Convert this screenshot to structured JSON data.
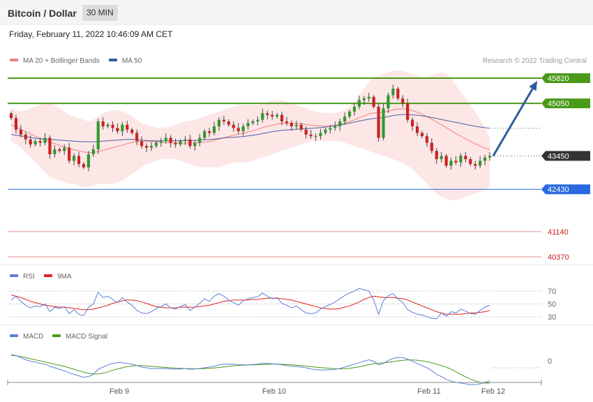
{
  "header": {
    "title": "Bitcoin / Dollar",
    "timeframe": "30 MIN",
    "datetime": "Friday, February 11, 2022 10:46:09 AM CET"
  },
  "legend": {
    "main": [
      {
        "label": "MA 20 + Bollinger Bands",
        "color": "#f08080"
      },
      {
        "label": "MA 50",
        "color": "#2e5c9a"
      }
    ],
    "rsi": [
      {
        "label": "RSI",
        "color": "#5b7fd6"
      },
      {
        "label": "9MA",
        "color": "#e02020"
      }
    ],
    "macd": [
      {
        "label": "MACD",
        "color": "#5b7fd6"
      },
      {
        "label": "MACD Signal",
        "color": "#4a9a1a"
      }
    ]
  },
  "credit": "Research © 2022 Trading Central",
  "colors": {
    "up": "#2e9a2e",
    "down": "#cc2222",
    "resistance": "#4a9a1a",
    "pivot": "#2a6ae0",
    "support": "#e89090",
    "last": "#333333",
    "bollinger_fill": "#fde3e3"
  },
  "chart_data": [
    {
      "type": "candlestick",
      "panel": "price",
      "title": "Bitcoin / Dollar",
      "ylim": [
        39900,
        46400
      ],
      "x_ticks": [
        "Feb 9",
        "Feb 10",
        "Feb 11",
        "Feb 12"
      ],
      "levels": [
        {
          "value": 45820,
          "label": "45820",
          "role": "resistance"
        },
        {
          "value": 45050,
          "label": "45050",
          "role": "resistance"
        },
        {
          "value": 43450,
          "label": "43450",
          "role": "last"
        },
        {
          "value": 42430,
          "label": "42430",
          "role": "pivot"
        },
        {
          "value": 41140,
          "label": "41140",
          "role": "support"
        },
        {
          "value": 40370,
          "label": "40370",
          "role": "support"
        }
      ],
      "forecast": {
        "from": 43450,
        "to": 45820
      },
      "closes": [
        44600,
        44250,
        44100,
        43950,
        43800,
        43900,
        43850,
        44000,
        43500,
        43650,
        43600,
        43700,
        43300,
        43450,
        43200,
        43100,
        43500,
        43650,
        44500,
        44350,
        44400,
        44300,
        44200,
        44400,
        44250,
        44150,
        43900,
        43750,
        43700,
        43750,
        43850,
        43900,
        44000,
        43850,
        43800,
        43900,
        43950,
        43750,
        43850,
        44000,
        44200,
        44150,
        44350,
        44550,
        44500,
        44400,
        44300,
        44200,
        44350,
        44450,
        44500,
        44550,
        44750,
        44700,
        44650,
        44700,
        44500,
        44450,
        44350,
        44400,
        44250,
        44100,
        44050,
        44050,
        44150,
        44250,
        44300,
        44350,
        44500,
        44650,
        44800,
        44950,
        45150,
        45200,
        45250,
        44950,
        44000,
        44900,
        45300,
        45500,
        45200,
        45050,
        44550,
        44350,
        44150,
        44050,
        43850,
        43600,
        43350,
        43450,
        43150,
        43300,
        43250,
        43450,
        43350,
        43200,
        43150,
        43300,
        43400,
        43450
      ],
      "ma50": [
        44100,
        44080,
        44060,
        44040,
        44010,
        43990,
        43970,
        43960,
        43950,
        43940,
        43930,
        43920,
        43910,
        43900,
        43890,
        43880,
        43880,
        43880,
        43890,
        43900,
        43910,
        43920,
        43930,
        43940,
        43950,
        43950,
        43940,
        43930,
        43920,
        43910,
        43910,
        43910,
        43910,
        43910,
        43910,
        43910,
        43920,
        43920,
        43920,
        43930,
        43940,
        43950,
        43960,
        43980,
        44000,
        44010,
        44020,
        44030,
        44040,
        44060,
        44080,
        44100,
        44130,
        44160,
        44190,
        44210,
        44230,
        44240,
        44250,
        44260,
        44270,
        44280,
        44290,
        44300,
        44310,
        44330,
        44350,
        44370,
        44390,
        44420,
        44450,
        44480,
        44510,
        44540,
        44570,
        44590,
        44600,
        44620,
        44650,
        44680,
        44700,
        44710,
        44710,
        44700,
        44690,
        44670,
        44650,
        44620,
        44590,
        44560,
        44530,
        44500,
        44470,
        44440,
        44410,
        44380,
        44350,
        44330,
        44310,
        44290
      ],
      "ma20": [
        44400,
        44330,
        44260,
        44190,
        44120,
        44050,
        43990,
        43930,
        43870,
        43820,
        43770,
        43720,
        43680,
        43640,
        43600,
        43570,
        43550,
        43550,
        43580,
        43620,
        43660,
        43700,
        43740,
        43780,
        43820,
        43860,
        43880,
        43890,
        43890,
        43890,
        43880,
        43870,
        43860,
        43850,
        43840,
        43840,
        43840,
        43840,
        43840,
        43850,
        43870,
        43890,
        43920,
        43960,
        44000,
        44040,
        44080,
        44110,
        44140,
        44180,
        44220,
        44260,
        44310,
        44350,
        44390,
        44420,
        44440,
        44450,
        44450,
        44440,
        44430,
        44410,
        44390,
        44370,
        44360,
        44350,
        44360,
        44380,
        44410,
        44450,
        44500,
        44550,
        44610,
        44670,
        44730,
        44760,
        44760,
        44780,
        44810,
        44850,
        44880,
        44890,
        44870,
        44830,
        44780,
        44720,
        44650,
        44570,
        44490,
        44400,
        44310,
        44220,
        44130,
        44050,
        43970,
        43890,
        43820,
        43750,
        43690,
        43640
      ],
      "boll_upper": [
        44900,
        44850,
        44800,
        44850,
        44900,
        44950,
        45000,
        45050,
        45100,
        45000,
        44900,
        44800,
        44700,
        44650,
        44600,
        44550,
        44500,
        44550,
        44650,
        44750,
        44800,
        44850,
        44850,
        44800,
        44750,
        44650,
        44550,
        44450,
        44400,
        44350,
        44300,
        44300,
        44320,
        44350,
        44400,
        44450,
        44500,
        44520,
        44550,
        44600,
        44650,
        44700,
        44750,
        44800,
        44850,
        44900,
        44950,
        45000,
        45000,
        45000,
        45000,
        45000,
        45050,
        45100,
        45150,
        45150,
        45150,
        45100,
        45050,
        45000,
        44950,
        44900,
        44850,
        44800,
        44780,
        44760,
        44750,
        44760,
        44800,
        44850,
        44950,
        45100,
        45300,
        45500,
        45700,
        45850,
        45900,
        45950,
        46000,
        46050,
        46050,
        46050,
        46000,
        45950,
        45900,
        45850,
        45850,
        45900,
        45950,
        46000,
        45950,
        45800,
        45600,
        45400,
        45200,
        45000,
        44800,
        44550,
        44300,
        44000
      ],
      "boll_lower": [
        43900,
        43800,
        43700,
        43550,
        43400,
        43250,
        43100,
        42950,
        42800,
        42750,
        42700,
        42650,
        42600,
        42600,
        42550,
        42500,
        42500,
        42550,
        42600,
        42600,
        42600,
        42600,
        42650,
        42700,
        42800,
        42900,
        43000,
        43100,
        43200,
        43250,
        43300,
        43350,
        43350,
        43350,
        43350,
        43300,
        43250,
        43200,
        43150,
        43100,
        43100,
        43100,
        43100,
        43100,
        43150,
        43200,
        43250,
        43250,
        43250,
        43250,
        43300,
        43350,
        43400,
        43450,
        43500,
        43550,
        43600,
        43650,
        43700,
        43750,
        43800,
        43850,
        43900,
        43900,
        43900,
        43900,
        43900,
        43900,
        43900,
        43850,
        43800,
        43750,
        43700,
        43650,
        43600,
        43550,
        43500,
        43450,
        43400,
        43350,
        43300,
        43250,
        43150,
        43050,
        42900,
        42750,
        42600,
        42450,
        42300,
        42200,
        42150,
        42100,
        42100,
        42150,
        42200,
        42250,
        42300,
        42350,
        42400,
        42500
      ]
    },
    {
      "type": "line",
      "panel": "rsi",
      "ylim": [
        20,
        80
      ],
      "levels": [
        70,
        50,
        30
      ],
      "series": [
        {
          "name": "RSI",
          "values": [
            56,
            62,
            54,
            48,
            44,
            47,
            46,
            50,
            38,
            45,
            43,
            46,
            35,
            41,
            34,
            32,
            45,
            50,
            68,
            60,
            62,
            57,
            52,
            60,
            53,
            48,
            40,
            36,
            35,
            38,
            43,
            46,
            50,
            44,
            42,
            46,
            49,
            40,
            45,
            51,
            58,
            54,
            62,
            66,
            62,
            56,
            52,
            48,
            55,
            58,
            60,
            61,
            67,
            62,
            58,
            60,
            51,
            48,
            44,
            47,
            41,
            36,
            35,
            36,
            42,
            46,
            49,
            53,
            58,
            63,
            67,
            70,
            74,
            72,
            70,
            56,
            34,
            55,
            63,
            66,
            58,
            52,
            41,
            37,
            34,
            33,
            30,
            28,
            27,
            36,
            31,
            38,
            36,
            42,
            39,
            35,
            34,
            40,
            45,
            48
          ]
        },
        {
          "name": "9MA",
          "values": [
            64,
            62,
            60,
            57,
            54,
            52,
            50,
            48,
            47,
            46,
            45,
            45,
            44,
            43,
            42,
            41,
            41,
            42,
            44,
            46,
            48,
            51,
            53,
            55,
            56,
            56,
            55,
            53,
            51,
            48,
            46,
            45,
            44,
            44,
            44,
            45,
            45,
            45,
            45,
            46,
            47,
            48,
            50,
            52,
            54,
            55,
            56,
            56,
            56,
            56,
            57,
            57,
            58,
            59,
            59,
            59,
            58,
            57,
            56,
            54,
            52,
            50,
            48,
            46,
            44,
            43,
            42,
            42,
            43,
            45,
            47,
            50,
            53,
            57,
            60,
            62,
            61,
            60,
            60,
            60,
            59,
            58,
            56,
            53,
            50,
            47,
            44,
            41,
            38,
            36,
            34,
            34,
            34,
            34,
            35,
            36,
            36,
            37,
            38,
            40
          ]
        }
      ]
    },
    {
      "type": "line",
      "panel": "macd",
      "ylim": [
        -350,
        250
      ],
      "levels": [
        0
      ],
      "series": [
        {
          "name": "MACD",
          "values": [
            180,
            170,
            140,
            110,
            90,
            80,
            60,
            50,
            20,
            0,
            -20,
            -40,
            -70,
            -90,
            -110,
            -130,
            -120,
            -90,
            -20,
            10,
            40,
            60,
            70,
            70,
            60,
            50,
            30,
            10,
            0,
            -10,
            -10,
            -10,
            -10,
            -15,
            -20,
            -15,
            -10,
            -20,
            -15,
            -10,
            0,
            10,
            20,
            40,
            50,
            50,
            50,
            40,
            40,
            40,
            45,
            50,
            60,
            60,
            55,
            50,
            40,
            30,
            20,
            20,
            10,
            0,
            -15,
            -25,
            -30,
            -30,
            -25,
            -20,
            -10,
            10,
            30,
            50,
            70,
            90,
            110,
            90,
            40,
            60,
            100,
            130,
            140,
            140,
            120,
            90,
            60,
            30,
            0,
            -40,
            -90,
            -120,
            -160,
            -180,
            -200,
            -210,
            -220,
            -230,
            -230,
            -220,
            -200,
            -180
          ]
        },
        {
          "name": "MACD Signal",
          "values": [
            170,
            165,
            155,
            140,
            125,
            110,
            95,
            80,
            65,
            50,
            35,
            20,
            0,
            -20,
            -40,
            -60,
            -75,
            -85,
            -85,
            -75,
            -55,
            -35,
            -15,
            0,
            15,
            25,
            30,
            30,
            25,
            20,
            15,
            10,
            5,
            0,
            -5,
            -8,
            -10,
            -12,
            -13,
            -13,
            -11,
            -8,
            -3,
            5,
            12,
            20,
            28,
            33,
            36,
            38,
            40,
            42,
            45,
            48,
            50,
            50,
            48,
            45,
            40,
            35,
            30,
            24,
            17,
            10,
            3,
            -3,
            -8,
            -12,
            -14,
            -12,
            -6,
            3,
            14,
            28,
            42,
            55,
            62,
            68,
            76,
            85,
            95,
            103,
            108,
            108,
            104,
            96,
            84,
            68,
            50,
            30,
            10,
            -20,
            -55,
            -90,
            -125,
            -155,
            -180,
            -200,
            -210,
            -210
          ]
        }
      ]
    }
  ]
}
